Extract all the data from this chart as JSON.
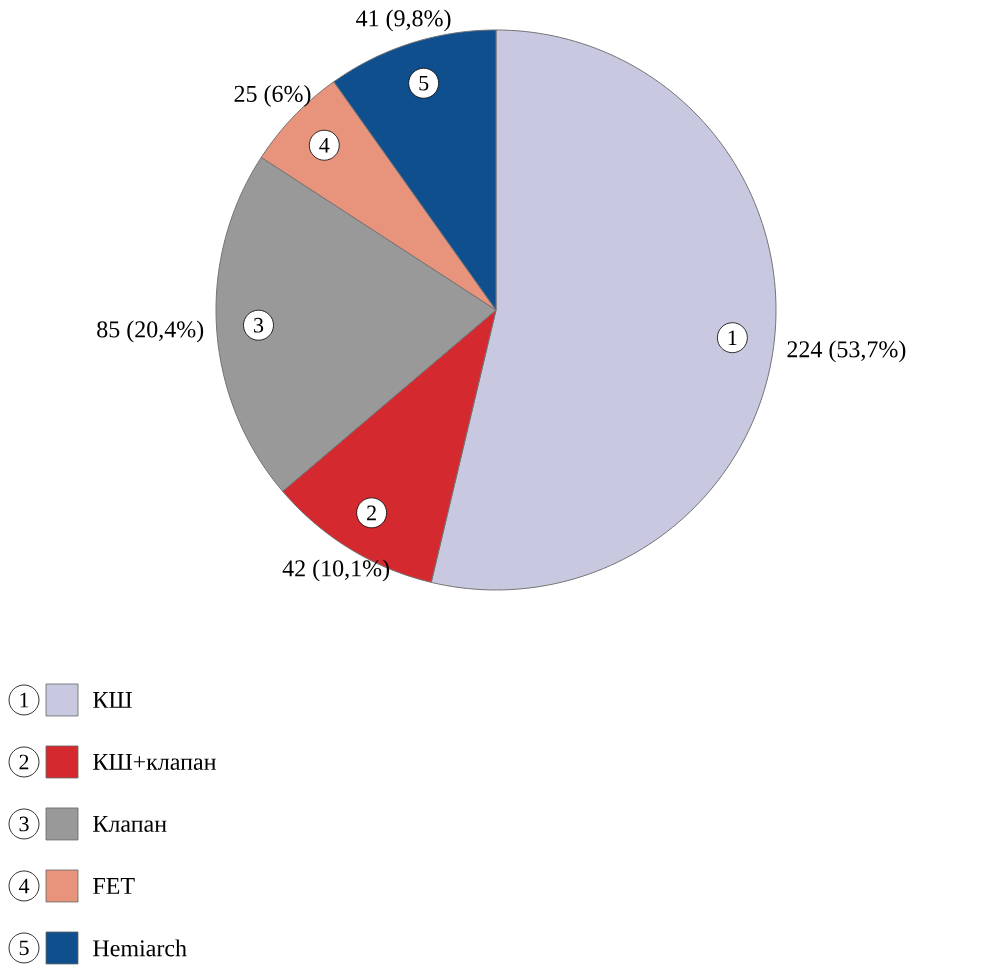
{
  "chart_data": {
    "type": "pie",
    "categories": [
      "КШ",
      "КШ+клапан",
      "Клапан",
      "FET",
      "Hemiarch"
    ],
    "values": [
      224,
      42,
      85,
      25,
      41
    ],
    "colors": [
      "#c8c9e0",
      "#d42a2f",
      "#999999",
      "#e8937c",
      "#104f8e"
    ],
    "value_labels": [
      "224 (53,7%)",
      "42 (10,1%)",
      "85 (20,4%)",
      "25 (6%)",
      "41 (9,8%)"
    ],
    "annotations": [
      "1",
      "2",
      "3",
      "4",
      "5"
    ],
    "legend": "bottom left"
  }
}
